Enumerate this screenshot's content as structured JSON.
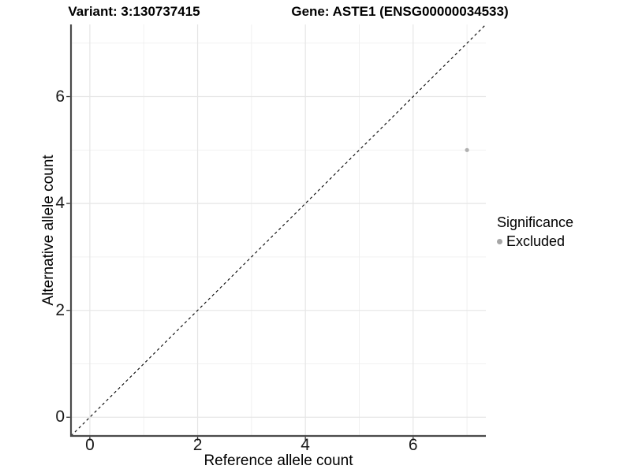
{
  "chart_data": {
    "type": "scatter",
    "title_left": "Variant: 3:130737415",
    "title_right": "Gene: ASTE1 (ENSG00000034533)",
    "xlabel": "Reference allele count",
    "ylabel": "Alternative allele count",
    "xlim": [
      -0.35,
      7.35
    ],
    "ylim": [
      -0.35,
      7.35
    ],
    "x_major_ticks": [
      0,
      2,
      4,
      6
    ],
    "y_major_ticks": [
      0,
      2,
      4,
      6
    ],
    "x_minor_ticks": [
      1,
      3,
      5,
      7
    ],
    "y_minor_ticks": [
      1,
      3,
      5,
      7
    ],
    "grid": true,
    "reference_line": {
      "style": "dashed",
      "x1": -0.35,
      "y1": -0.35,
      "x2": 7.35,
      "y2": 7.35,
      "color": "#000000"
    },
    "series": [
      {
        "name": "Excluded",
        "color": "#b0b0b0",
        "points": [
          {
            "x": 7,
            "y": 5
          }
        ]
      }
    ],
    "legend": {
      "title": "Significance",
      "position": "right",
      "items": [
        {
          "label": "Excluded",
          "color": "#a6a6a6"
        }
      ]
    },
    "style_colors": {
      "background": "#ffffff",
      "grid_major": "#e6e6e6",
      "grid_minor": "#efefef",
      "axis_line": "#4a4a4a",
      "tick_mark": "#333333",
      "tick_label": "#1a1a1a"
    }
  }
}
